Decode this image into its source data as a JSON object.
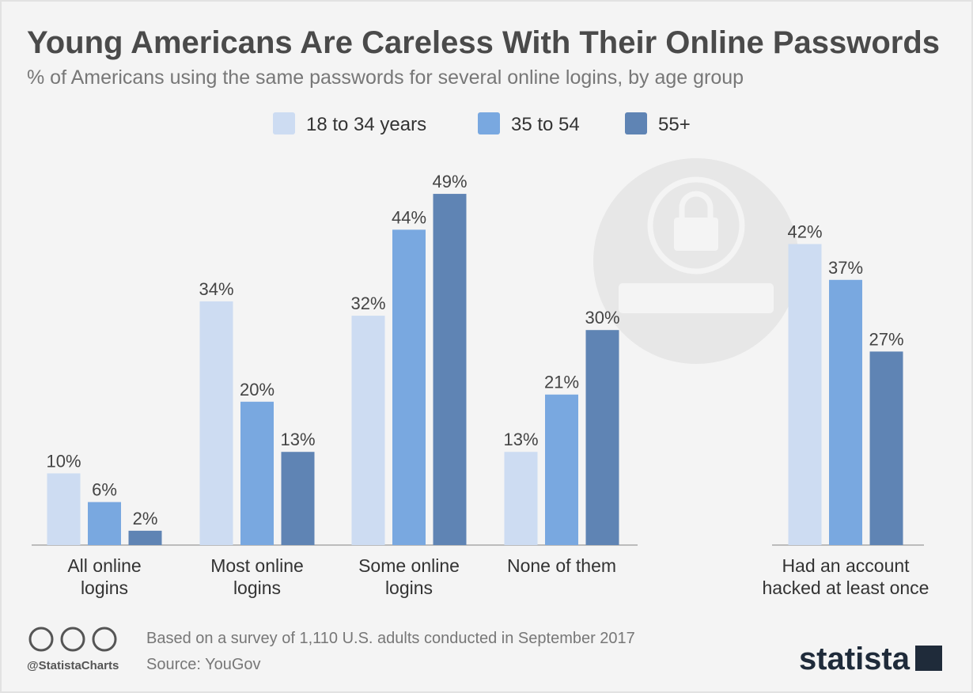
{
  "chart_data": {
    "type": "bar",
    "title": "Young Americans Are Careless With Their Online Passwords",
    "subtitle": "% of Americans using the same passwords for several online logins, by age group",
    "categories": [
      "All online logins",
      "Most online logins",
      "Some online logins",
      "None of them",
      "Had an account hacked at least once"
    ],
    "series": [
      {
        "name": "18 to 34 years",
        "color": "#cddcf2",
        "values": [
          10,
          34,
          32,
          13,
          42
        ],
        "value_labels": [
          "10%",
          "34%",
          "32%",
          "13%",
          "42%"
        ]
      },
      {
        "name": "35 to 54",
        "color": "#79a8e0",
        "values": [
          6,
          20,
          44,
          21,
          37
        ],
        "value_labels": [
          "6%",
          "20%",
          "44%",
          "21%",
          "37%"
        ]
      },
      {
        "name": "55+",
        "color": "#5f84b4",
        "values": [
          2,
          13,
          49,
          30,
          27
        ],
        "value_labels": [
          "2%",
          "13%",
          "49%",
          "30%",
          "27%"
        ]
      }
    ],
    "note": "Based on a survey of 1,110 U.S. adults conducted in September 2017",
    "source": "Source: YouGov",
    "credit": "@StatistaCharts",
    "logo": "statista"
  }
}
